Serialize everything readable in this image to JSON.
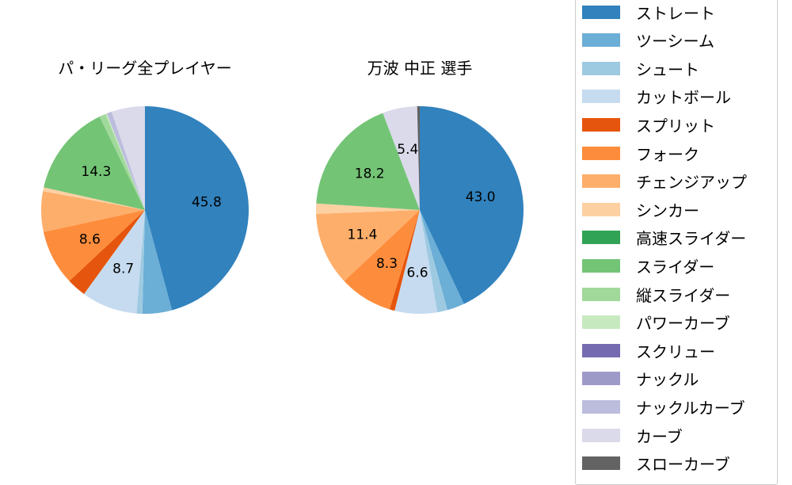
{
  "chart_data": [
    {
      "type": "pie",
      "title": "パ・リーグ全プレイヤー",
      "start_angle": 90,
      "direction": "clockwise",
      "labels_shown_min_pct": 5.5,
      "slices": [
        {
          "label": "ストレート",
          "value": 45.8,
          "color": "#3182bd",
          "shown": "45.8"
        },
        {
          "label": "ツーシーム",
          "value": 4.6,
          "color": "#6baed6",
          "shown": ""
        },
        {
          "label": "シュート",
          "value": 0.9,
          "color": "#9ecae1",
          "shown": ""
        },
        {
          "label": "カットボール",
          "value": 8.7,
          "color": "#c6dbef",
          "shown": "8.7"
        },
        {
          "label": "スプリット",
          "value": 3.0,
          "color": "#e6550d",
          "shown": ""
        },
        {
          "label": "フォーク",
          "value": 8.6,
          "color": "#fd8d3c",
          "shown": "8.6"
        },
        {
          "label": "チェンジアップ",
          "value": 6.3,
          "color": "#fdae6b",
          "shown": ""
        },
        {
          "label": "シンカー",
          "value": 0.6,
          "color": "#fdd0a2",
          "shown": ""
        },
        {
          "label": "スライダー",
          "value": 14.3,
          "color": "#74c476",
          "shown": "14.3"
        },
        {
          "label": "縦スライダー",
          "value": 1.0,
          "color": "#a1d99b",
          "shown": ""
        },
        {
          "label": "パワーカーブ",
          "value": 0.2,
          "color": "#c7e9c0",
          "shown": ""
        },
        {
          "label": "ナックルカーブ",
          "value": 0.8,
          "color": "#bcbddc",
          "shown": ""
        },
        {
          "label": "カーブ",
          "value": 5.2,
          "color": "#dadaeb",
          "shown": ""
        }
      ]
    },
    {
      "type": "pie",
      "title": "万波 中正  選手",
      "start_angle": 90,
      "direction": "clockwise",
      "labels_shown_min_pct": 5.0,
      "slices": [
        {
          "label": "ストレート",
          "value": 43.0,
          "color": "#3182bd",
          "shown": "43.0"
        },
        {
          "label": "ツーシーム",
          "value": 2.7,
          "color": "#6baed6",
          "shown": ""
        },
        {
          "label": "シュート",
          "value": 1.6,
          "color": "#9ecae1",
          "shown": ""
        },
        {
          "label": "カットボール",
          "value": 6.6,
          "color": "#c6dbef",
          "shown": "6.6"
        },
        {
          "label": "スプリット",
          "value": 0.8,
          "color": "#e6550d",
          "shown": ""
        },
        {
          "label": "フォーク",
          "value": 8.3,
          "color": "#fd8d3c",
          "shown": "8.3"
        },
        {
          "label": "チェンジアップ",
          "value": 11.4,
          "color": "#fdae6b",
          "shown": "11.4"
        },
        {
          "label": "シンカー",
          "value": 1.6,
          "color": "#fdd0a2",
          "shown": ""
        },
        {
          "label": "スライダー",
          "value": 18.2,
          "color": "#74c476",
          "shown": "18.2"
        },
        {
          "label": "カーブ",
          "value": 5.4,
          "color": "#dadaeb",
          "shown": "5.4"
        },
        {
          "label": "スローカーブ",
          "value": 0.4,
          "color": "#636363",
          "shown": ""
        }
      ]
    }
  ],
  "titles": {
    "left": "パ・リーグ全プレイヤー",
    "right": "万波 中正  選手"
  },
  "legend": {
    "items": [
      {
        "label": "ストレート",
        "color": "#3182bd"
      },
      {
        "label": "ツーシーム",
        "color": "#6baed6"
      },
      {
        "label": "シュート",
        "color": "#9ecae1"
      },
      {
        "label": "カットボール",
        "color": "#c6dbef"
      },
      {
        "label": "スプリット",
        "color": "#e6550d"
      },
      {
        "label": "フォーク",
        "color": "#fd8d3c"
      },
      {
        "label": "チェンジアップ",
        "color": "#fdae6b"
      },
      {
        "label": "シンカー",
        "color": "#fdd0a2"
      },
      {
        "label": "高速スライダー",
        "color": "#31a354"
      },
      {
        "label": "スライダー",
        "color": "#74c476"
      },
      {
        "label": "縦スライダー",
        "color": "#a1d99b"
      },
      {
        "label": "パワーカーブ",
        "color": "#c7e9c0"
      },
      {
        "label": "スクリュー",
        "color": "#756bb1"
      },
      {
        "label": "ナックル",
        "color": "#9e9ac8"
      },
      {
        "label": "ナックルカーブ",
        "color": "#bcbddc"
      },
      {
        "label": "カーブ",
        "color": "#dadaeb"
      },
      {
        "label": "スローカーブ",
        "color": "#636363"
      }
    ]
  }
}
